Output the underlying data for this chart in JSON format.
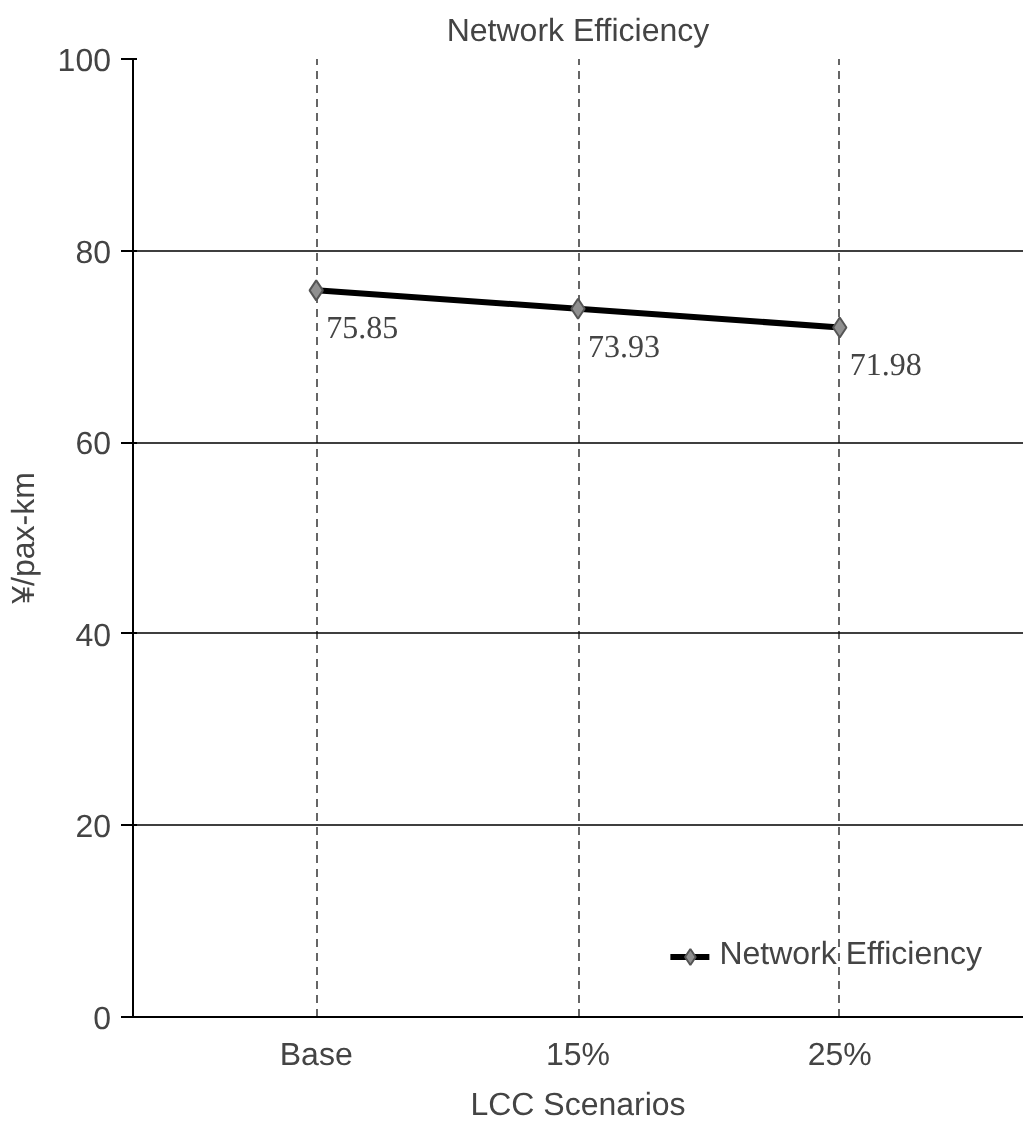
{
  "chart_data": {
    "type": "line",
    "title": "Network Efficiency",
    "xlabel": "LCC Scenarios",
    "ylabel": "¥/pax-km",
    "categories": [
      "Base",
      "15%",
      "25%"
    ],
    "series": [
      {
        "name": "Network Efficiency",
        "color": "#000000",
        "values": [
          75.85,
          73.93,
          71.98
        ]
      }
    ],
    "ylim": [
      0,
      100
    ],
    "yticks": [
      0,
      20,
      40,
      60,
      80,
      100
    ],
    "grid": true,
    "legend": "bottom right",
    "marker": "diamond",
    "line_style": "solid",
    "data_labels": true
  }
}
